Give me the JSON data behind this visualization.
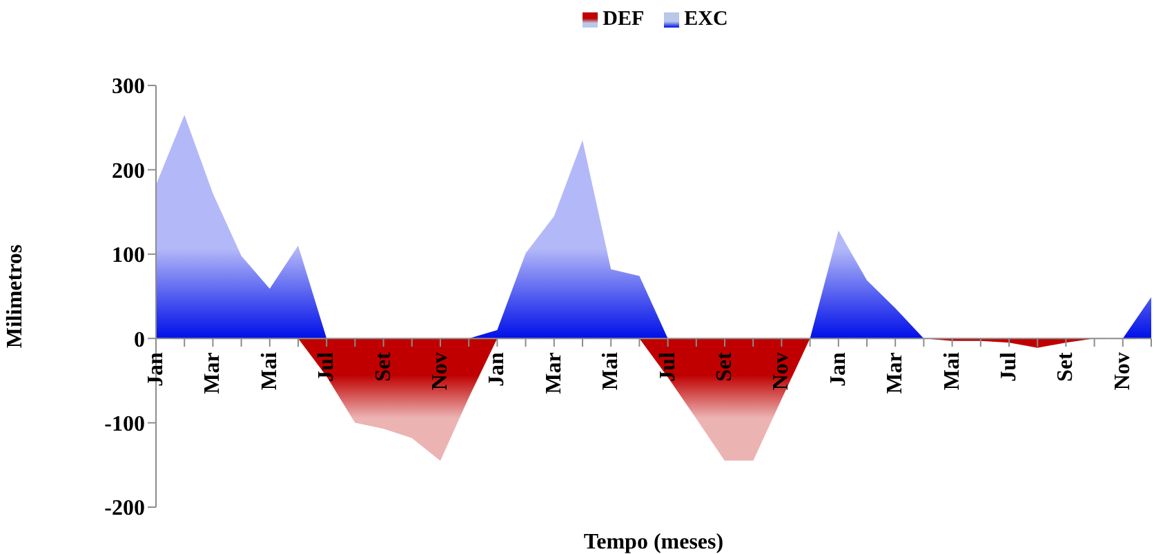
{
  "chart_data": {
    "type": "area",
    "xlabel": "Tempo (meses)",
    "ylabel": "Milimetros",
    "categories": [
      "Jan",
      null,
      "Mar",
      null,
      "Mai",
      null,
      "Jul",
      null,
      "Set",
      null,
      "Nov",
      null,
      "Jan",
      null,
      "Mar",
      null,
      "Mai",
      null,
      "Jul",
      null,
      "Set",
      null,
      "Nov",
      null,
      "Jan",
      null,
      "Mar",
      null,
      "Mai",
      null,
      "Jul",
      null,
      "Set",
      null,
      "Nov",
      null
    ],
    "series": [
      {
        "name": "DEF",
        "color": "#c00000",
        "values": [
          0,
          0,
          0,
          0,
          0,
          0,
          -45,
          -100,
          -107,
          -118,
          -145,
          -70,
          0,
          0,
          0,
          0,
          0,
          0,
          -46,
          -95,
          -145,
          -145,
          -72,
          0,
          0,
          0,
          0,
          0,
          -3,
          -3,
          -5,
          -11,
          -5,
          0,
          0,
          0
        ]
      },
      {
        "name": "EXC",
        "color": "#0010e8",
        "values": [
          182,
          265,
          172,
          98,
          59,
          110,
          0,
          0,
          0,
          0,
          0,
          0,
          10,
          101,
          145,
          235,
          82,
          74,
          0,
          0,
          0,
          0,
          0,
          0,
          128,
          69,
          36,
          0,
          0,
          0,
          0,
          0,
          0,
          0,
          0,
          49
        ]
      }
    ],
    "ylim": [
      -200,
      300
    ],
    "yticks": [
      -200,
      -100,
      0,
      100,
      200,
      300
    ],
    "grid": false,
    "legend": "top"
  }
}
